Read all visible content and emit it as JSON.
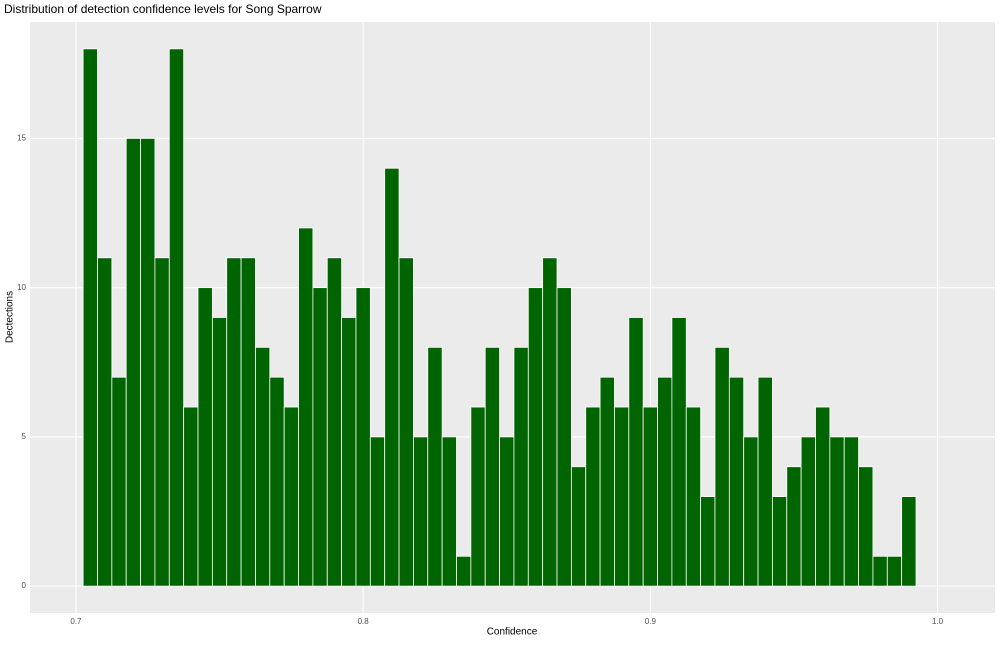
{
  "chart_data": {
    "type": "histogram",
    "title": "Distribution of detection confidence levels for Song Sparrow",
    "x_label": "Confidence",
    "y_label": "Dectections",
    "bins": [
      0.7025,
      0.7075,
      0.7125,
      0.7175,
      0.7225,
      0.7275,
      0.7325,
      0.7375,
      0.7425,
      0.7475,
      0.7525,
      0.7575,
      0.7625,
      0.7675,
      0.7725,
      0.7775,
      0.7825,
      0.7875,
      0.7925,
      0.7975,
      0.8025,
      0.8075,
      0.8125,
      0.8175,
      0.8225,
      0.8275,
      0.8325,
      0.8375,
      0.8425,
      0.8475,
      0.8525,
      0.8575,
      0.8625,
      0.8675,
      0.8725,
      0.8775,
      0.8825,
      0.8875,
      0.8925,
      0.8975,
      0.9025,
      0.9075,
      0.9125,
      0.9175,
      0.9225,
      0.9275,
      0.9325,
      0.9375,
      0.9425,
      0.9475,
      0.9525,
      0.9575,
      0.9625,
      0.9675,
      0.9725,
      0.9775,
      0.9825,
      0.9875,
      0.9925
    ],
    "values": [
      18,
      11,
      7,
      15,
      15,
      11,
      18,
      6,
      10,
      9,
      11,
      11,
      8,
      7,
      6,
      12,
      10,
      11,
      9,
      10,
      5,
      14,
      11,
      5,
      8,
      5,
      1,
      6,
      8,
      5,
      8,
      10,
      11,
      10,
      4,
      6,
      7,
      6,
      9,
      6,
      7,
      9,
      6,
      3,
      8,
      7,
      5,
      7,
      3,
      4,
      5,
      6,
      5,
      5,
      4,
      1,
      1,
      3
    ],
    "color": "#006400",
    "xlim": [
      0.684,
      1.02
    ],
    "xticks": [
      0.7,
      0.8,
      0.9,
      {
        "value": 1,
        "label": "1.0"
      }
    ],
    "ylim": [
      -0.9,
      18.9
    ],
    "yticks": [
      0,
      5,
      10,
      15
    ],
    "grid": true
  }
}
